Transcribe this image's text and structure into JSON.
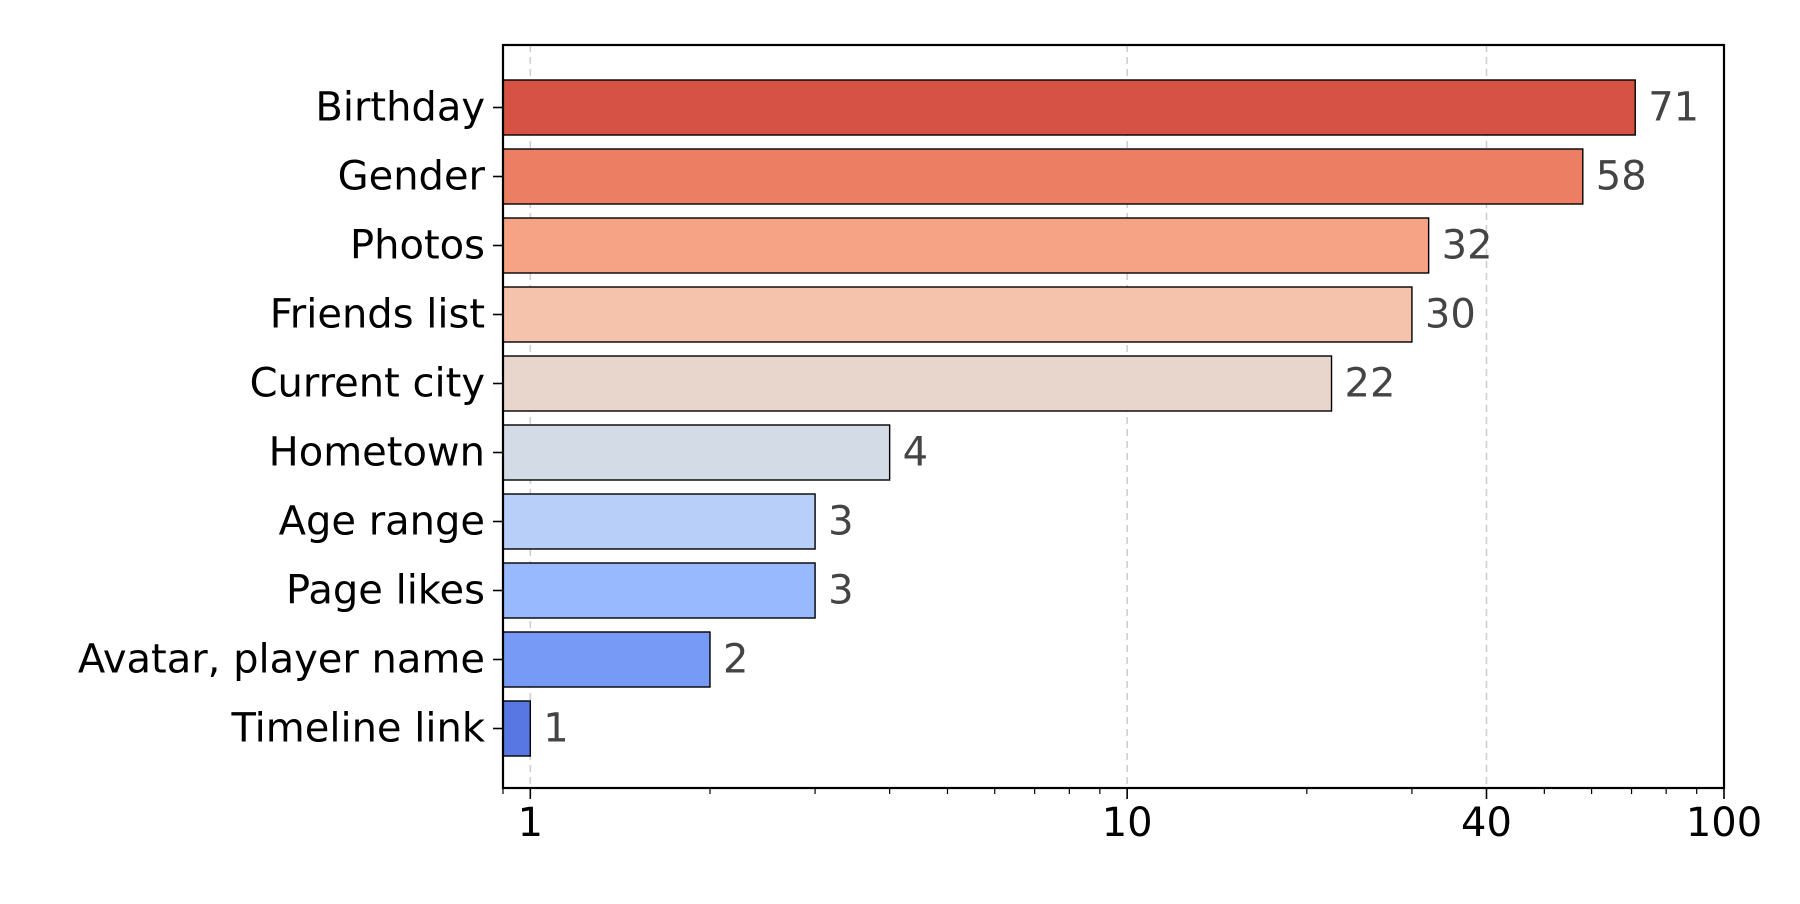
{
  "chart_data": {
    "type": "bar",
    "orientation": "horizontal",
    "title": "",
    "xlabel": "",
    "ylabel": "",
    "x_scale": "log",
    "xlim": [
      0.9,
      100
    ],
    "x_ticks": [
      1,
      10,
      40,
      100
    ],
    "x_tick_labels": [
      "1",
      "10",
      "40",
      "100"
    ],
    "grid": "vertical dashed at major ticks",
    "categories": [
      "Birthday",
      "Gender",
      "Photos",
      "Friends list",
      "Current city",
      "Hometown",
      "Age range",
      "Page likes",
      "Avatar, player name",
      "Timeline link"
    ],
    "values": [
      71,
      58,
      32,
      30,
      22,
      4,
      3,
      3,
      2,
      1
    ],
    "value_labels": [
      "71",
      "58",
      "32",
      "30",
      "22",
      "4",
      "3",
      "3",
      "2",
      "1"
    ],
    "bar_colors": [
      "#d65244",
      "#ec7e63",
      "#f6a385",
      "#f5c3ab",
      "#e8d6cc",
      "#d3dbe7",
      "#b7cff9",
      "#99b9fe",
      "#779af7",
      "#5977e3"
    ],
    "edge_color": "#000000",
    "label_color": "#444444"
  }
}
